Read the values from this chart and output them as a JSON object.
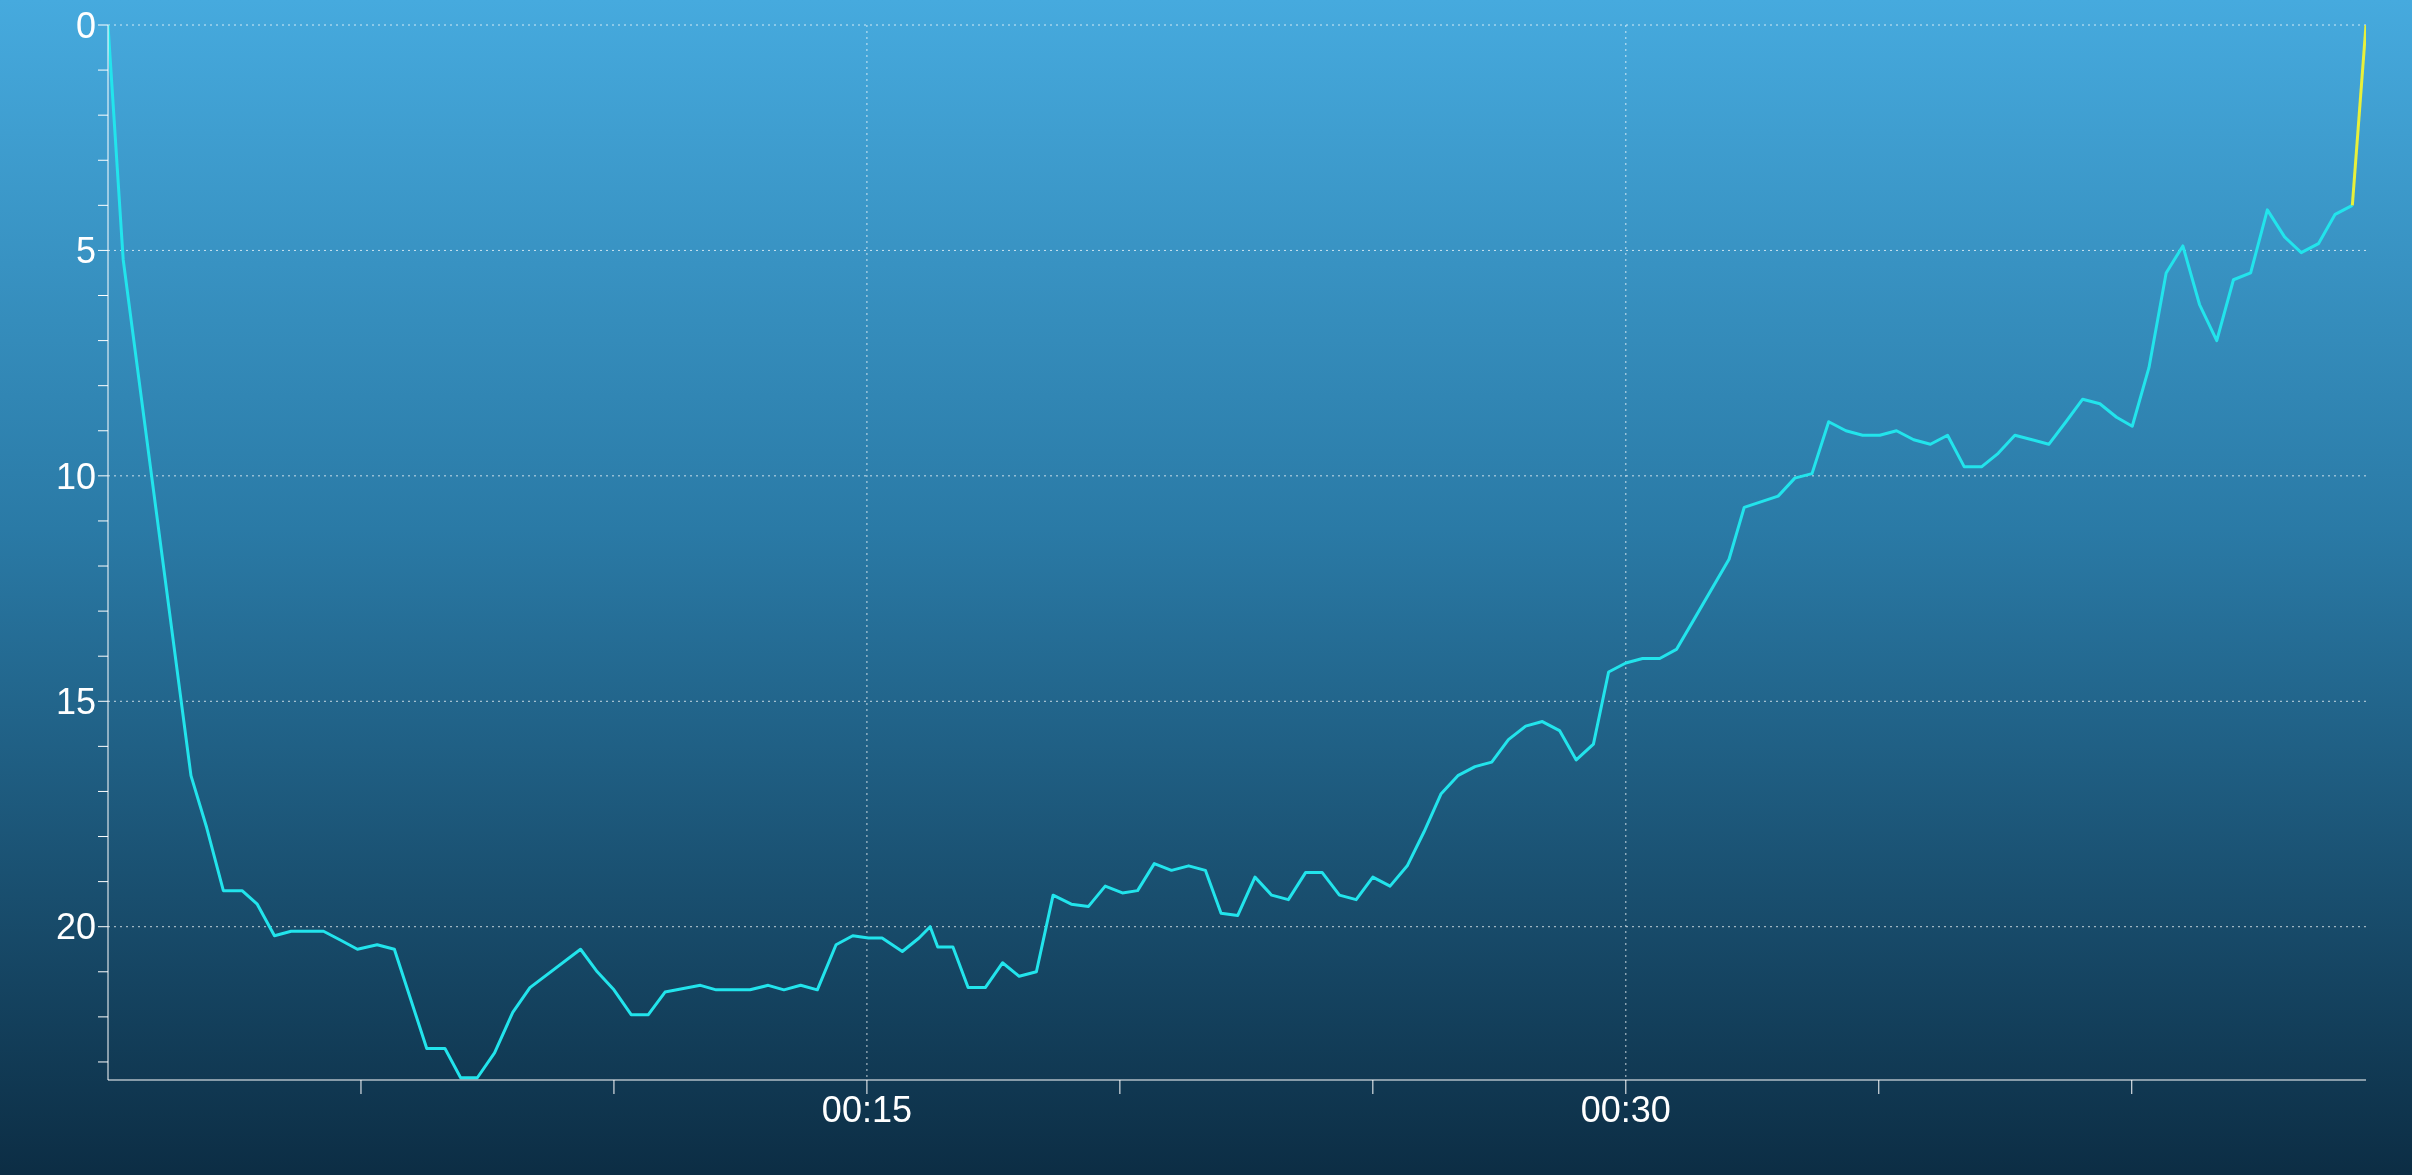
{
  "chart_data": {
    "type": "line",
    "xlim": [
      0,
      44.63
    ],
    "ylim": [
      23.4,
      0
    ],
    "xticks": [
      {
        "value": 5,
        "label": null
      },
      {
        "value": 10,
        "label": null
      },
      {
        "value": 15,
        "label": "00:15"
      },
      {
        "value": 20,
        "label": null
      },
      {
        "value": 25,
        "label": null
      },
      {
        "value": 30,
        "label": "00:30"
      },
      {
        "value": 35,
        "label": null
      },
      {
        "value": 40,
        "label": null
      }
    ],
    "yticks": [
      0,
      {
        "value": 1,
        "label": null
      },
      {
        "value": 2,
        "label": null
      },
      {
        "value": 3,
        "label": null
      },
      {
        "value": 4,
        "label": null
      },
      5,
      {
        "value": 6,
        "label": null
      },
      {
        "value": 7,
        "label": null
      },
      {
        "value": 8,
        "label": null
      },
      {
        "value": 9,
        "label": null
      },
      10,
      {
        "value": 11,
        "label": null
      },
      {
        "value": 12,
        "label": null
      },
      {
        "value": 13,
        "label": null
      },
      {
        "value": 14,
        "label": null
      },
      15,
      {
        "value": 16,
        "label": null
      },
      {
        "value": 17,
        "label": null
      },
      {
        "value": 18,
        "label": null
      },
      {
        "value": 19,
        "label": null
      },
      20,
      {
        "value": 21,
        "label": null
      },
      {
        "value": 22,
        "label": null
      },
      {
        "value": 23,
        "label": null
      }
    ],
    "grid": true,
    "marker": "none",
    "line_style": "solid",
    "legend": false,
    "series": [
      {
        "color": "#22e4ec",
        "x": [
          0,
          0.3,
          1.64,
          1.95,
          2.28,
          2.65,
          2.95,
          3.29,
          3.62,
          4.26,
          4.6,
          4.93,
          5.32,
          5.66,
          6.3,
          6.66,
          6.97,
          7.3,
          7.64,
          8.0,
          8.34,
          9.34,
          9.67,
          10.0,
          10.34,
          10.68,
          11.01,
          11.71,
          12.02,
          12.69,
          13.05,
          13.36,
          13.69,
          14.02,
          14.39,
          14.72,
          15.03,
          15.3,
          15.7,
          16.03,
          16.25,
          16.4,
          16.7,
          17.0,
          17.34,
          17.68,
          18.01,
          18.35,
          18.68,
          19.04,
          19.38,
          19.71,
          20.05,
          20.35,
          20.68,
          21.02,
          21.36,
          21.69,
          22.0,
          22.33,
          22.67,
          23.0,
          23.33,
          23.67,
          24.0,
          24.34,
          24.67,
          25.0,
          25.34,
          25.68,
          26.01,
          26.35,
          26.68,
          27.02,
          27.35,
          27.68,
          28.02,
          28.35,
          28.69,
          29.02,
          29.36,
          29.66,
          30.0,
          30.33,
          30.67,
          31.0,
          31.34,
          32.04,
          32.34,
          33.01,
          33.34,
          33.68,
          34.01,
          34.35,
          34.68,
          35.02,
          35.35,
          35.69,
          36.02,
          36.36,
          36.69,
          37.03,
          37.36,
          37.69,
          38.03,
          38.36,
          38.7,
          39.03,
          39.37,
          39.7,
          40.01,
          40.34,
          40.68,
          41.01,
          41.34,
          41.68,
          42.01,
          42.35,
          42.68,
          43.02,
          43.35,
          43.69,
          44.02,
          44.36
        ],
        "values": [
          0,
          5.2,
          16.65,
          17.8,
          19.2,
          19.2,
          19.5,
          20.2,
          20.1,
          20.1,
          20.3,
          20.5,
          20.4,
          20.5,
          22.7,
          22.7,
          23.35,
          23.35,
          22.8,
          21.9,
          21.35,
          20.5,
          21.0,
          21.4,
          21.95,
          21.95,
          21.45,
          21.3,
          21.4,
          21.4,
          21.3,
          21.4,
          21.3,
          21.4,
          20.4,
          20.2,
          20.25,
          20.25,
          20.55,
          20.25,
          20.0,
          20.45,
          20.45,
          21.35,
          21.35,
          20.8,
          21.1,
          21.0,
          19.3,
          19.5,
          19.55,
          19.1,
          19.25,
          19.2,
          18.6,
          18.75,
          18.65,
          18.75,
          19.7,
          19.75,
          18.9,
          19.3,
          19.4,
          18.8,
          18.8,
          19.3,
          19.4,
          18.9,
          19.1,
          18.65,
          17.9,
          17.05,
          16.65,
          16.45,
          16.35,
          15.85,
          15.55,
          15.45,
          15.65,
          16.3,
          15.95,
          14.35,
          14.15,
          14.05,
          14.05,
          13.85,
          13.2,
          11.85,
          10.7,
          10.45,
          10.05,
          9.95,
          8.8,
          9.0,
          9.1,
          9.1,
          9.0,
          9.2,
          9.3,
          9.1,
          9.8,
          9.8,
          9.5,
          9.1,
          9.2,
          9.3,
          8.8,
          8.3,
          8.4,
          8.7,
          8.9,
          7.6,
          5.5,
          4.9,
          6.2,
          7.0,
          5.65,
          5.5,
          4.1,
          4.7,
          5.05,
          4.85,
          4.2,
          4.0
        ]
      },
      {
        "color": "#e8f03a",
        "x": [
          44.36,
          44.63
        ],
        "values": [
          4.0,
          0
        ]
      }
    ]
  }
}
